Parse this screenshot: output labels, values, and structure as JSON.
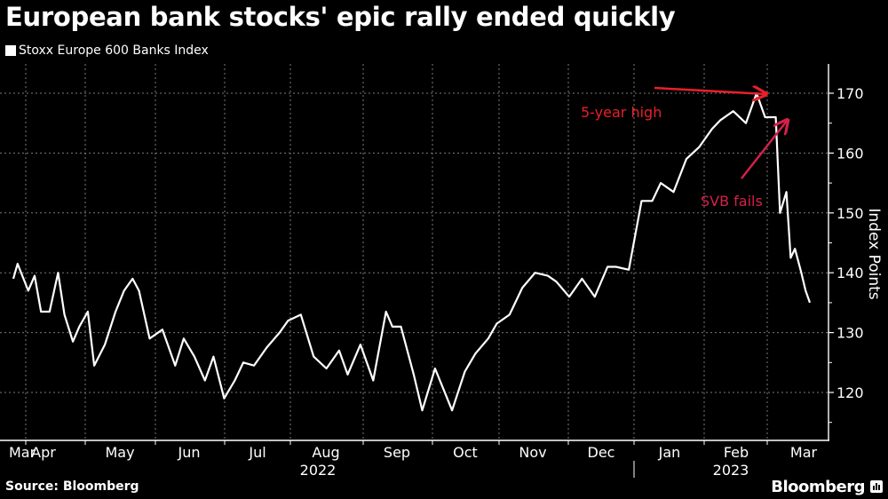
{
  "header": {
    "title": "European bank stocks' epic rally ended quickly",
    "legend_label": "Stoxx Europe 600 Banks Index"
  },
  "footer": {
    "source": "Source: Bloomberg",
    "brand": "Bloomberg"
  },
  "colors": {
    "background": "#000000",
    "line": "#ffffff",
    "grid": "#7a7a7a",
    "annotation_high": "#e8202b",
    "annotation_svb": "#d4214a"
  },
  "chart_data": {
    "type": "line",
    "title": "European bank stocks' epic rally ended quickly",
    "xlabel": "",
    "ylabel": "Index Points",
    "ylim": [
      112,
      174
    ],
    "yticks": [
      120,
      130,
      140,
      150,
      160,
      170
    ],
    "x_tick_labels": [
      "Mar",
      "Apr",
      "May",
      "Jun",
      "Jul",
      "Aug",
      "Sep",
      "Oct",
      "Nov",
      "Dec",
      "Jan",
      "Feb",
      "Mar"
    ],
    "year_labels": [
      "2022",
      "2023"
    ],
    "grid": true,
    "legend_position": "top-left",
    "annotations": [
      {
        "text": "5-year high",
        "value": 170,
        "date": "Feb 2023"
      },
      {
        "text": "SVB fails",
        "value": 166,
        "date": "Mar 2023"
      }
    ],
    "series": [
      {
        "name": "Stoxx Europe 600 Banks Index",
        "x": [
          "2022-03-15",
          "2022-03-17",
          "2022-03-22",
          "2022-03-25",
          "2022-03-28",
          "2022-04-01",
          "2022-04-05",
          "2022-04-08",
          "2022-04-12",
          "2022-04-15",
          "2022-04-19",
          "2022-04-22",
          "2022-04-27",
          "2022-05-02",
          "2022-05-06",
          "2022-05-10",
          "2022-05-13",
          "2022-05-18",
          "2022-05-24",
          "2022-05-30",
          "2022-06-03",
          "2022-06-08",
          "2022-06-13",
          "2022-06-17",
          "2022-06-22",
          "2022-06-27",
          "2022-07-01",
          "2022-07-06",
          "2022-07-12",
          "2022-07-18",
          "2022-07-22",
          "2022-07-28",
          "2022-08-03",
          "2022-08-09",
          "2022-08-15",
          "2022-08-19",
          "2022-08-25",
          "2022-08-31",
          "2022-09-06",
          "2022-09-09",
          "2022-09-13",
          "2022-09-19",
          "2022-09-23",
          "2022-09-29",
          "2022-10-03",
          "2022-10-07",
          "2022-10-13",
          "2022-10-18",
          "2022-10-24",
          "2022-10-28",
          "2022-11-03",
          "2022-11-09",
          "2022-11-15",
          "2022-11-21",
          "2022-11-25",
          "2022-12-01",
          "2022-12-07",
          "2022-12-13",
          "2022-12-19",
          "2022-12-23",
          "2022-12-29",
          "2023-01-04",
          "2023-01-09",
          "2023-01-13",
          "2023-01-19",
          "2023-01-25",
          "2023-01-31",
          "2023-02-06",
          "2023-02-10",
          "2023-02-16",
          "2023-02-22",
          "2023-02-27",
          "2023-03-03",
          "2023-03-08",
          "2023-03-10",
          "2023-03-13",
          "2023-03-15",
          "2023-03-17",
          "2023-03-20",
          "2023-03-22",
          "2023-03-24"
        ],
        "values": [
          139,
          141.5,
          137,
          139.5,
          133.5,
          133.5,
          140,
          133,
          128.5,
          131,
          133.5,
          124.5,
          128,
          133.5,
          137,
          139,
          137,
          129,
          130.5,
          124.5,
          129,
          126,
          122,
          126,
          119,
          122,
          125,
          124.5,
          127.5,
          130,
          132,
          133,
          126,
          124,
          127,
          123,
          128,
          122,
          133.5,
          131,
          131,
          123,
          117,
          124,
          120.5,
          117,
          123.5,
          126.5,
          129,
          131.5,
          133,
          137.5,
          140,
          139.5,
          138.5,
          136,
          139,
          136,
          141,
          141,
          140.5,
          152,
          152,
          155,
          153.5,
          159,
          161,
          164,
          165.5,
          167,
          165,
          170,
          166,
          166,
          150,
          153.5,
          142.5,
          144,
          140,
          137,
          135
        ]
      }
    ]
  }
}
